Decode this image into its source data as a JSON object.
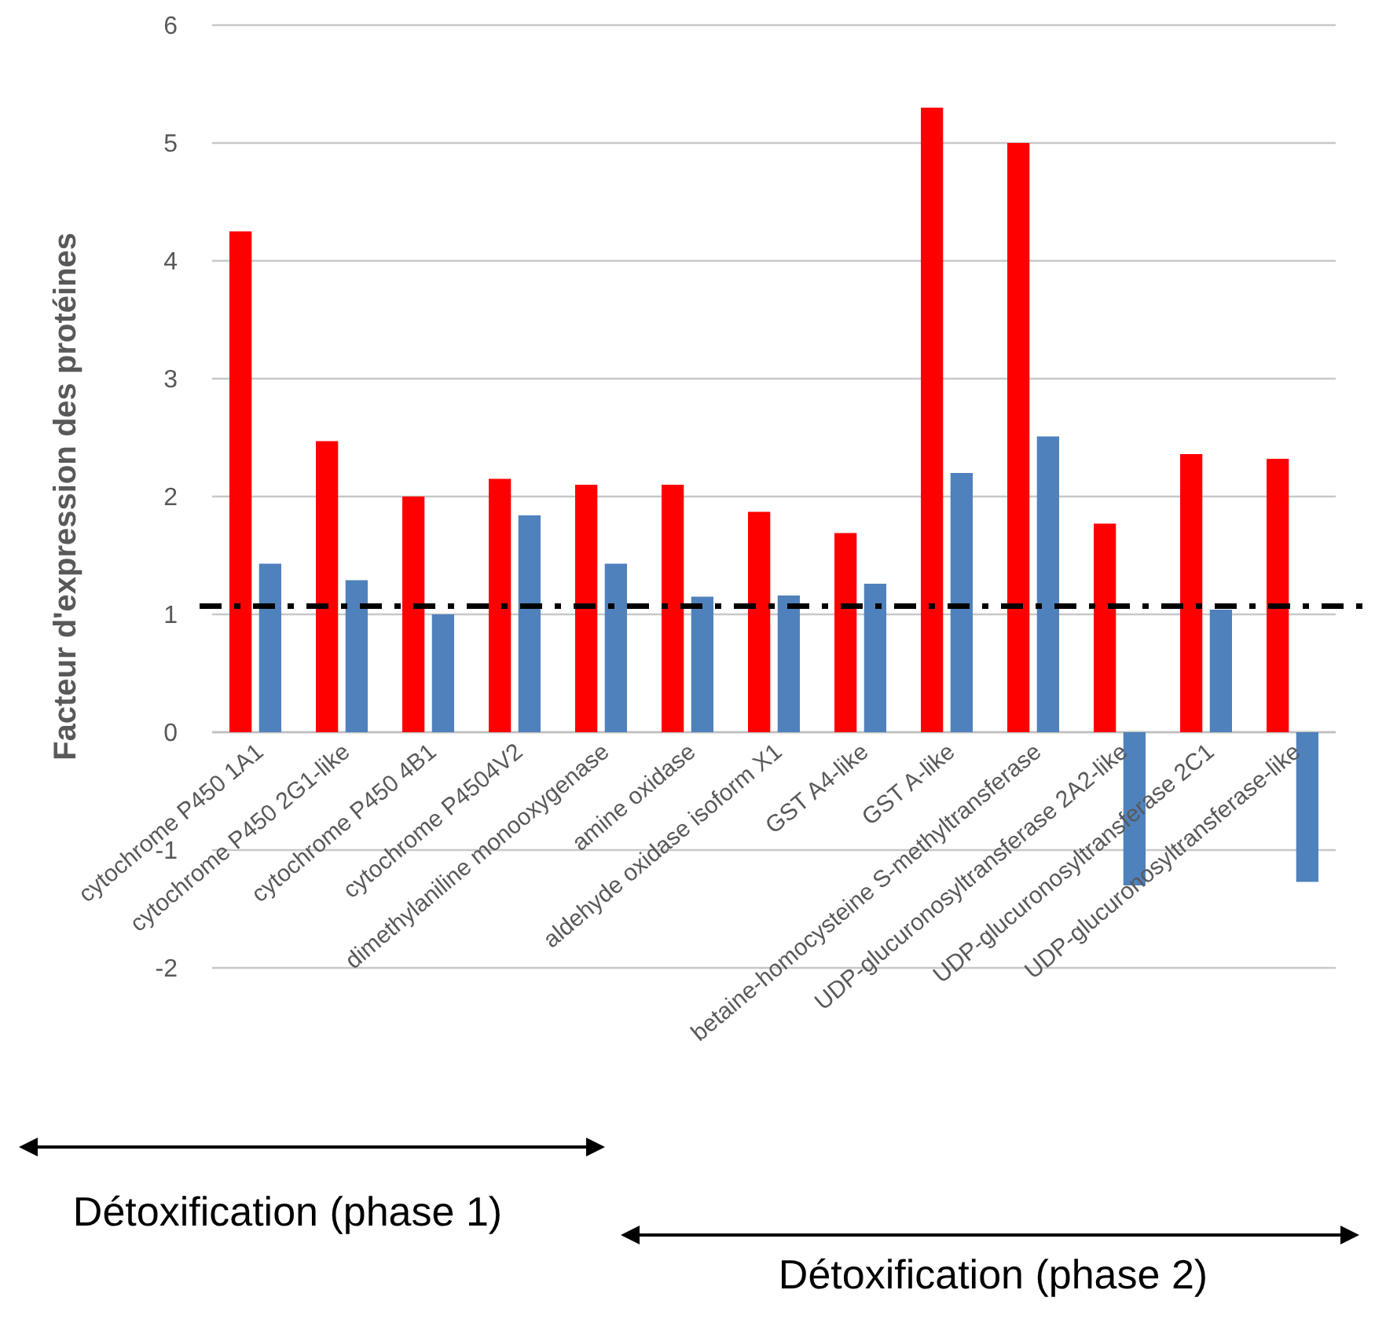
{
  "chart_data": {
    "type": "bar",
    "ylabel": "Facteur d'expression des protéines",
    "categories": [
      "cytochrome P450 1A1",
      "cytochrome P450 2G1-like",
      "cytochrome P450 4B1",
      "cytochrome P4504V2",
      "dimethylaniline monooxygenase",
      "amine oxidase",
      "aldehyde oxidase isoform X1",
      "GST A4-like",
      "GST A-like",
      "betaine-homocysteine S-methyltransferase",
      "UDP-glucuronosyltransferase 2A2-like",
      "UDP-glucuronosyltransferase 2C1",
      "UDP-glucuronosyltransferase-like"
    ],
    "series": [
      {
        "color": "#ff0000",
        "values": [
          4.25,
          2.47,
          2.0,
          2.15,
          2.1,
          2.1,
          1.87,
          1.69,
          5.3,
          5.0,
          1.77,
          2.36,
          2.32
        ]
      },
      {
        "color": "#4f81bd",
        "values": [
          1.43,
          1.29,
          1.0,
          1.84,
          1.43,
          1.15,
          1.16,
          1.26,
          2.2,
          2.51,
          -1.3,
          1.04,
          -1.27
        ]
      }
    ],
    "ylim": [
      -2,
      6
    ],
    "yticks": [
      -2,
      -1,
      0,
      1,
      2,
      3,
      4,
      5,
      6
    ],
    "grid": "y",
    "ref_lines": [
      {
        "axis": "y",
        "value": 1.07,
        "color": "#000000",
        "line_style": "dashdot"
      }
    ],
    "annotations": [
      "Détoxification (phase 1)",
      "Détoxification (phase 2)"
    ]
  }
}
